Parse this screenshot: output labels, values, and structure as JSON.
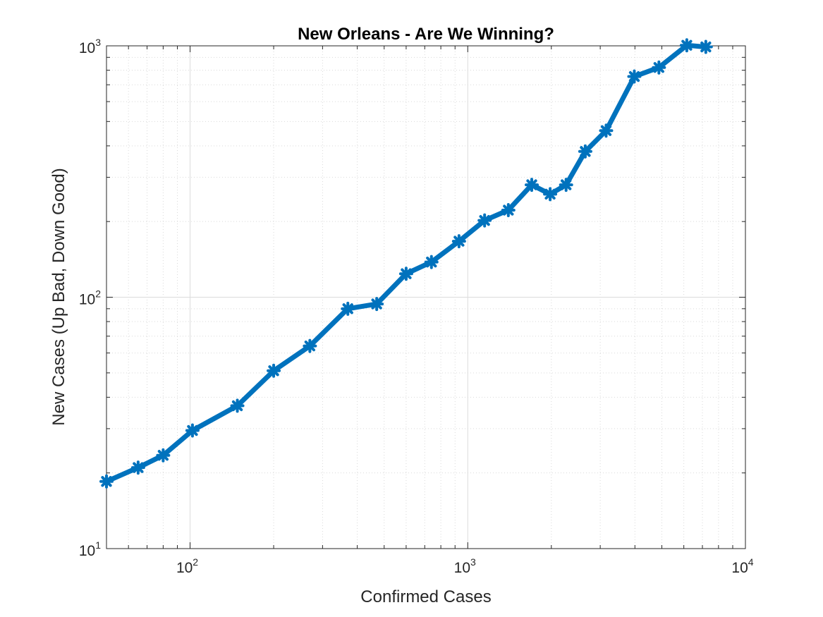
{
  "chart_data": {
    "type": "line",
    "title": "New Orleans - Are We Winning?",
    "xlabel": "Confirmed Cases",
    "ylabel": "New Cases (Up Bad, Down Good)",
    "xscale": "log",
    "yscale": "log",
    "xlim": [
      50,
      10000
    ],
    "ylim": [
      10,
      1000
    ],
    "x_ticks": [
      {
        "base": "10",
        "exp": "2",
        "value": 100
      },
      {
        "base": "10",
        "exp": "3",
        "value": 1000
      },
      {
        "base": "10",
        "exp": "4",
        "value": 10000
      }
    ],
    "y_ticks": [
      {
        "base": "10",
        "exp": "1",
        "value": 10
      },
      {
        "base": "10",
        "exp": "2",
        "value": 100
      },
      {
        "base": "10",
        "exp": "3",
        "value": 1000
      }
    ],
    "grid": true,
    "minor_grid": true,
    "line_color": "#0072BD",
    "marker": "asterisk",
    "series": [
      {
        "x": [
          50,
          65,
          80,
          102,
          148,
          200,
          270,
          370,
          470,
          600,
          740,
          930,
          1150,
          1400,
          1700,
          1980,
          2260,
          2650,
          3150,
          3980,
          4880,
          6150,
          7200
        ],
        "y": [
          18.5,
          21,
          23.5,
          29.5,
          37,
          51,
          64,
          90,
          94,
          124,
          138,
          167,
          202,
          222,
          280,
          257,
          280,
          380,
          460,
          755,
          820,
          1005,
          990
        ]
      }
    ]
  }
}
